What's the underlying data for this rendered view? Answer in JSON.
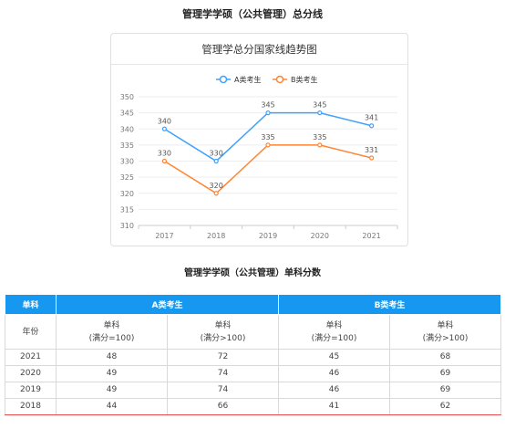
{
  "page_title": "管理学学硕（公共管理）总分线",
  "chart_data": {
    "type": "line",
    "title": "管理学总分国家线趋势图",
    "categories": [
      "2017",
      "2018",
      "2019",
      "2020",
      "2021"
    ],
    "series": [
      {
        "name": "A类考生",
        "color": "#3ea0ff",
        "values": [
          340,
          330,
          345,
          345,
          341
        ]
      },
      {
        "name": "B类考生",
        "color": "#ff8533",
        "values": [
          330,
          320,
          335,
          335,
          331
        ]
      }
    ],
    "ylim": [
      310,
      350
    ],
    "yticks": [
      310,
      315,
      320,
      325,
      330,
      335,
      340,
      345,
      350
    ],
    "grid": true,
    "legend_position": "top-center"
  },
  "table_title": "管理学学硕（公共管理）单科分数",
  "table": {
    "header_col": "单科",
    "group_a": "A类考生",
    "group_b": "B类考生",
    "year_label": "年份",
    "sub_label": "单科",
    "sub_a1": "(满分=100)",
    "sub_a2": "(满分>100)",
    "sub_b1": "(满分=100)",
    "sub_b2": "(满分>100)",
    "rows": [
      {
        "year": "2021",
        "a1": "48",
        "a2": "72",
        "b1": "45",
        "b2": "68"
      },
      {
        "year": "2020",
        "a1": "49",
        "a2": "74",
        "b1": "46",
        "b2": "69"
      },
      {
        "year": "2019",
        "a1": "49",
        "a2": "74",
        "b1": "46",
        "b2": "69"
      },
      {
        "year": "2018",
        "a1": "44",
        "a2": "66",
        "b1": "41",
        "b2": "62"
      }
    ]
  }
}
